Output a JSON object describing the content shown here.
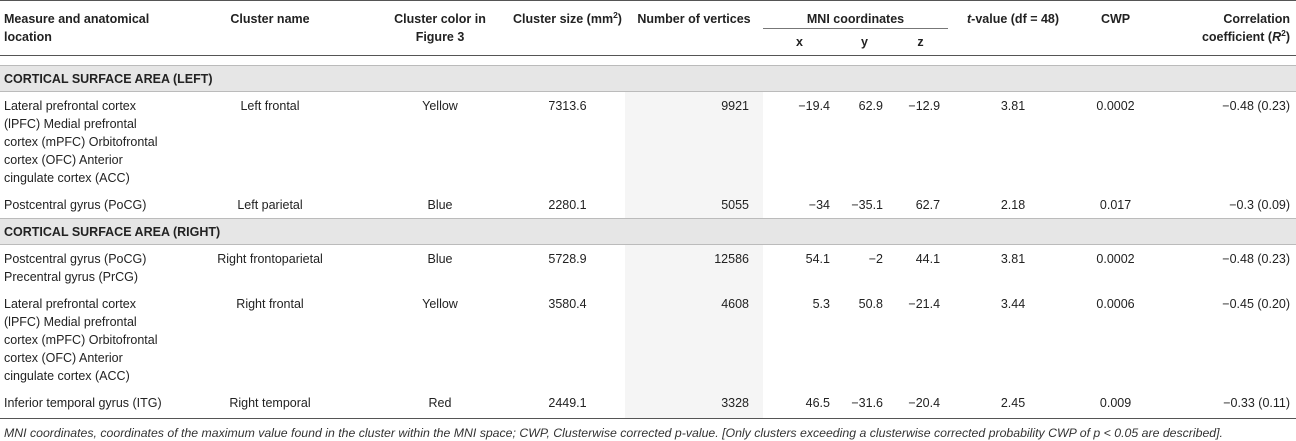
{
  "headers": {
    "measure": "Measure and anatomical location",
    "cluster_name": "Cluster name",
    "cluster_color_line1": "Cluster color in",
    "cluster_color_line2": "Figure 3",
    "cluster_size": "Cluster size (mm",
    "cluster_size_sup": "2",
    "cluster_size_end": ")",
    "vertices": "Number of vertices",
    "mni": "MNI coordinates",
    "x": "x",
    "y": "y",
    "z": "z",
    "t_italic": "t",
    "t_rest": "-value (df = 48)",
    "cwp": "CWP",
    "corr_line1": "Correlation",
    "corr_line2": "coefficient (",
    "corr_r": "R",
    "corr_sup": "2",
    "corr_end": ")"
  },
  "sections": [
    {
      "title": "CORTICAL SURFACE AREA (LEFT)",
      "rows": [
        {
          "measure_lines": [
            "Lateral prefrontal cortex",
            "(lPFC) Medial prefrontal",
            "cortex (mPFC) Orbitofrontal",
            "cortex (OFC) Anterior",
            "cingulate cortex (ACC)"
          ],
          "name": "Left frontal",
          "color": "Yellow",
          "size": "7313.6",
          "vertices": "9921",
          "x": "−19.4",
          "y": "62.9",
          "z": "−12.9",
          "t": "3.81",
          "cwp": "0.0002",
          "corr": "−0.48 (0.23)"
        },
        {
          "measure_lines": [
            "Postcentral gyrus (PoCG)"
          ],
          "name": "Left parietal",
          "color": "Blue",
          "size": "2280.1",
          "vertices": "5055",
          "x": "−34",
          "y": "−35.1",
          "z": "62.7",
          "t": "2.18",
          "cwp": "0.017",
          "corr": "−0.3 (0.09)"
        }
      ]
    },
    {
      "title": "CORTICAL SURFACE AREA (RIGHT)",
      "rows": [
        {
          "measure_lines": [
            "Postcentral gyrus (PoCG)",
            "Precentral gyrus (PrCG)"
          ],
          "name": "Right frontoparietal",
          "color": "Blue",
          "size": "5728.9",
          "vertices": "12586",
          "x": "54.1",
          "y": "−2",
          "z": "44.1",
          "t": "3.81",
          "cwp": "0.0002",
          "corr": "−0.48 (0.23)"
        },
        {
          "measure_lines": [
            "Lateral prefrontal cortex",
            "(lPFC) Medial prefrontal",
            "cortex (mPFC) Orbitofrontal",
            "cortex (OFC) Anterior",
            "cingulate cortex (ACC)"
          ],
          "name": "Right frontal",
          "color": "Yellow",
          "size": "3580.4",
          "vertices": "4608",
          "x": "5.3",
          "y": "50.8",
          "z": "−21.4",
          "t": "3.44",
          "cwp": "0.0006",
          "corr": "−0.45 (0.20)"
        },
        {
          "measure_lines": [
            "Inferior temporal gyrus (ITG)"
          ],
          "name": "Right temporal",
          "color": "Red",
          "size": "2449.1",
          "vertices": "3328",
          "x": "46.5",
          "y": "−31.6",
          "z": "−20.4",
          "t": "2.45",
          "cwp": "0.009",
          "corr": "−0.33 (0.11)"
        }
      ]
    }
  ],
  "footnote": {
    "part1": "MNI coordinates, coordinates of the maximum value found in the cluster within the MNI space; CWP, Clusterwise corrected p-value. [Only clusters exceeding a clusterwise corrected probability CWP of ",
    "p": "p",
    "part2": " < 0.05 are described]."
  }
}
